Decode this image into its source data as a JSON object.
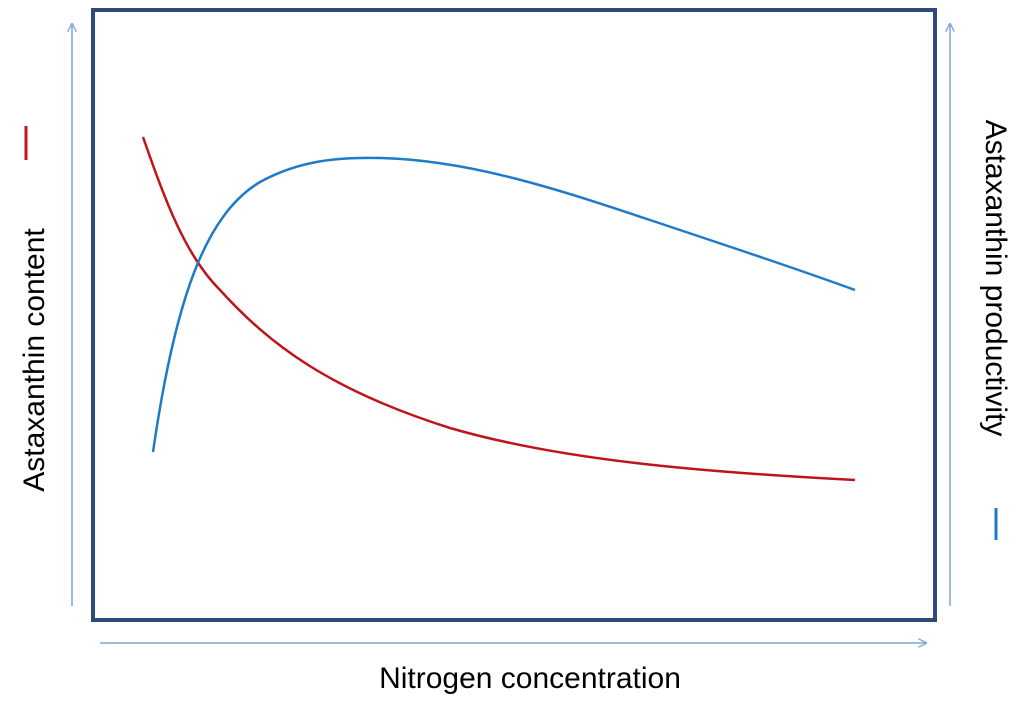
{
  "x_axis_label": "Nitrogen concentration",
  "left_axis_label": "Astaxanthin content",
  "right_axis_label": "Astaxanthin productivity"
}
